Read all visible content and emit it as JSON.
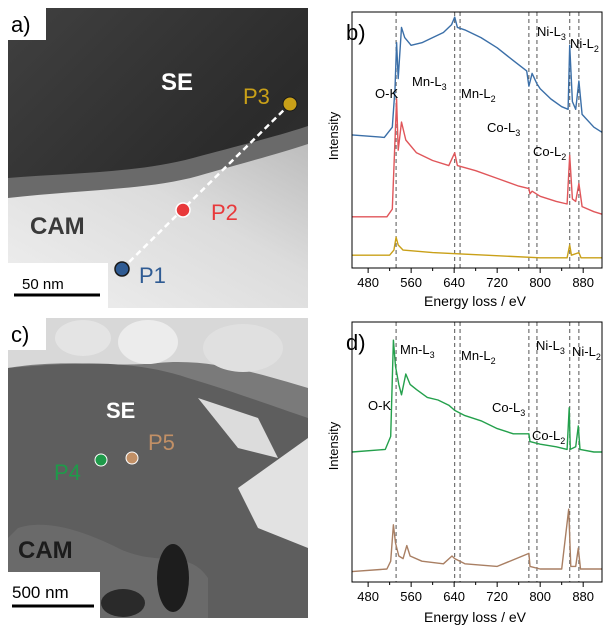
{
  "panels": {
    "a": {
      "label": "a)",
      "region_se": "SE",
      "region_cam": "CAM",
      "scalebar": "50 nm",
      "points": [
        {
          "id": "P1",
          "color": "#2f5b93"
        },
        {
          "id": "P2",
          "color": "#e8393b"
        },
        {
          "id": "P3",
          "color": "#c9a018"
        }
      ]
    },
    "c": {
      "label": "c)",
      "region_se": "SE",
      "region_cam": "CAM",
      "scalebar": "500 nm",
      "points": [
        {
          "id": "P4",
          "color": "#1f9a4a"
        },
        {
          "id": "P5",
          "color": "#c29066"
        }
      ]
    },
    "b": {
      "label": "b)",
      "edge_labels": {
        "ok": "O-K",
        "mnl3": "Mn-L",
        "mnl3_sub": "3",
        "mnl2": "Mn-L",
        "mnl2_sub": "2",
        "col3": "Co-L",
        "col3_sub": "3",
        "col2": "Co-L",
        "col2_sub": "2",
        "nil3": "Ni-L",
        "nil3_sub": "3",
        "nil2": "Ni-L",
        "nil2_sub": "2"
      }
    },
    "d": {
      "label": "d)",
      "edge_labels": {
        "ok": "O-K",
        "mnl3": "Mn-L",
        "mnl3_sub": "3",
        "mnl2": "Mn-L",
        "mnl2_sub": "2",
        "col3": "Co-L",
        "col3_sub": "3",
        "col2": "Co-L",
        "col2_sub": "2",
        "nil3": "Ni-L",
        "nil3_sub": "3",
        "nil2": "Ni-L",
        "nil2_sub": "2"
      }
    }
  },
  "chart_data": [
    {
      "type": "line",
      "panel": "b",
      "xlabel": "Energy loss / eV",
      "ylabel": "Intensity",
      "xlim": [
        450,
        915
      ],
      "xticks": [
        480,
        560,
        640,
        720,
        800,
        880
      ],
      "edge_energies": [
        532,
        641,
        651,
        779,
        794,
        855,
        872
      ],
      "series": [
        {
          "id": "P1",
          "color": "#3b6fa8",
          "points": [
            [
              450,
              0.52
            ],
            [
              510,
              0.51
            ],
            [
              525,
              0.55
            ],
            [
              530,
              0.7
            ],
            [
              533,
              0.88
            ],
            [
              536,
              0.74
            ],
            [
              542,
              0.94
            ],
            [
              548,
              0.9
            ],
            [
              560,
              0.87
            ],
            [
              580,
              0.88
            ],
            [
              600,
              0.9
            ],
            [
              620,
              0.92
            ],
            [
              635,
              0.95
            ],
            [
              641,
              0.98
            ],
            [
              646,
              0.94
            ],
            [
              660,
              0.93
            ],
            [
              690,
              0.9
            ],
            [
              720,
              0.86
            ],
            [
              750,
              0.81
            ],
            [
              775,
              0.77
            ],
            [
              779,
              0.71
            ],
            [
              785,
              0.76
            ],
            [
              794,
              0.72
            ],
            [
              800,
              0.7
            ],
            [
              820,
              0.66
            ],
            [
              840,
              0.63
            ],
            [
              852,
              0.62
            ],
            [
              855,
              0.87
            ],
            [
              860,
              0.65
            ],
            [
              866,
              0.62
            ],
            [
              872,
              0.73
            ],
            [
              878,
              0.6
            ],
            [
              900,
              0.55
            ],
            [
              915,
              0.53
            ]
          ]
        },
        {
          "id": "P2",
          "color": "#e0565a",
          "points": [
            [
              450,
              0.2
            ],
            [
              515,
              0.2
            ],
            [
              525,
              0.23
            ],
            [
              530,
              0.5
            ],
            [
              533,
              0.66
            ],
            [
              536,
              0.46
            ],
            [
              542,
              0.57
            ],
            [
              550,
              0.5
            ],
            [
              570,
              0.45
            ],
            [
              600,
              0.42
            ],
            [
              630,
              0.4
            ],
            [
              641,
              0.45
            ],
            [
              646,
              0.4
            ],
            [
              680,
              0.38
            ],
            [
              720,
              0.35
            ],
            [
              760,
              0.32
            ],
            [
              779,
              0.31
            ],
            [
              781,
              0.29
            ],
            [
              785,
              0.3
            ],
            [
              800,
              0.28
            ],
            [
              830,
              0.26
            ],
            [
              850,
              0.25
            ],
            [
              855,
              0.44
            ],
            [
              860,
              0.27
            ],
            [
              866,
              0.26
            ],
            [
              872,
              0.33
            ],
            [
              878,
              0.24
            ],
            [
              900,
              0.22
            ],
            [
              915,
              0.21
            ]
          ]
        },
        {
          "id": "P3",
          "color": "#c9a018",
          "points": [
            [
              450,
              0.05
            ],
            [
              520,
              0.05
            ],
            [
              528,
              0.07
            ],
            [
              532,
              0.12
            ],
            [
              536,
              0.09
            ],
            [
              545,
              0.07
            ],
            [
              600,
              0.06
            ],
            [
              700,
              0.05
            ],
            [
              800,
              0.04
            ],
            [
              850,
              0.04
            ],
            [
              855,
              0.09
            ],
            [
              858,
              0.05
            ],
            [
              872,
              0.06
            ],
            [
              876,
              0.04
            ],
            [
              915,
              0.04
            ]
          ]
        }
      ]
    },
    {
      "type": "line",
      "panel": "d",
      "xlabel": "Energy loss / eV",
      "ylabel": "Intensity",
      "xlim": [
        450,
        915
      ],
      "xticks": [
        480,
        560,
        640,
        720,
        800,
        880
      ],
      "edge_energies": [
        532,
        641,
        651,
        779,
        794,
        855,
        872
      ],
      "series": [
        {
          "id": "P4",
          "color": "#24a04c",
          "points": [
            [
              450,
              0.5
            ],
            [
              512,
              0.51
            ],
            [
              522,
              0.56
            ],
            [
              527,
              0.93
            ],
            [
              531,
              0.83
            ],
            [
              537,
              0.76
            ],
            [
              542,
              0.72
            ],
            [
              550,
              0.8
            ],
            [
              558,
              0.76
            ],
            [
              570,
              0.74
            ],
            [
              590,
              0.71
            ],
            [
              610,
              0.7
            ],
            [
              630,
              0.68
            ],
            [
              641,
              0.66
            ],
            [
              660,
              0.64
            ],
            [
              690,
              0.62
            ],
            [
              720,
              0.59
            ],
            [
              750,
              0.57
            ],
            [
              779,
              0.57
            ],
            [
              781,
              0.54
            ],
            [
              800,
              0.53
            ],
            [
              830,
              0.52
            ],
            [
              850,
              0.51
            ],
            [
              854,
              0.67
            ],
            [
              856,
              0.51
            ],
            [
              866,
              0.52
            ],
            [
              871,
              0.6
            ],
            [
              874,
              0.51
            ],
            [
              900,
              0.5
            ],
            [
              915,
              0.5
            ]
          ]
        },
        {
          "id": "P5",
          "color": "#a97f63",
          "points": [
            [
              450,
              0.04
            ],
            [
              515,
              0.05
            ],
            [
              522,
              0.08
            ],
            [
              527,
              0.22
            ],
            [
              531,
              0.15
            ],
            [
              537,
              0.1
            ],
            [
              545,
              0.09
            ],
            [
              552,
              0.14
            ],
            [
              558,
              0.1
            ],
            [
              580,
              0.08
            ],
            [
              620,
              0.07
            ],
            [
              636,
              0.1
            ],
            [
              641,
              0.09
            ],
            [
              660,
              0.07
            ],
            [
              720,
              0.06
            ],
            [
              779,
              0.11
            ],
            [
              781,
              0.06
            ],
            [
              800,
              0.05
            ],
            [
              840,
              0.05
            ],
            [
              853,
              0.28
            ],
            [
              857,
              0.06
            ],
            [
              866,
              0.06
            ],
            [
              871,
              0.13
            ],
            [
              875,
              0.05
            ],
            [
              915,
              0.05
            ]
          ]
        }
      ]
    }
  ]
}
